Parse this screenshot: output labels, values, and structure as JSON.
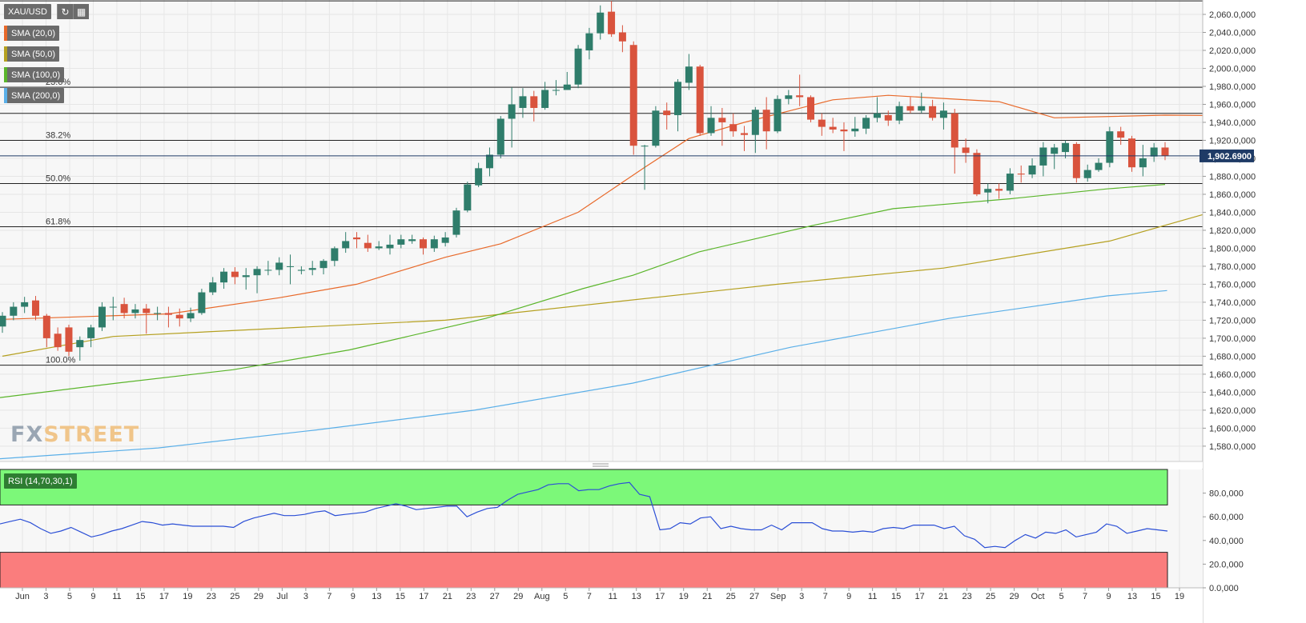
{
  "toolbar": {
    "symbol": "XAU/USD"
  },
  "legend": [
    {
      "label": "SMA (20,0)",
      "color": "#e8692a"
    },
    {
      "label": "SMA (50,0)",
      "color": "#b5a020"
    },
    {
      "label": "SMA (100,0)",
      "color": "#5ab52a"
    },
    {
      "label": "SMA (200,0)",
      "color": "#5aafe8"
    }
  ],
  "rsi_label": "RSI (14,70,30,1)",
  "watermark": {
    "fx": "FX",
    "street": "STREET"
  },
  "price_badge": "1,902.6900",
  "chart_data": [
    {
      "type": "candlestick",
      "title": "",
      "x_tick_labels": [
        "Jun",
        "3",
        "5",
        "9",
        "11",
        "15",
        "17",
        "19",
        "23",
        "25",
        "29",
        "Jul",
        "3",
        "7",
        "9",
        "13",
        "15",
        "17",
        "21",
        "23",
        "27",
        "29",
        "Aug",
        "5",
        "7",
        "11",
        "13",
        "17",
        "19",
        "21",
        "25",
        "27",
        "Sep",
        "3",
        "7",
        "9",
        "11",
        "15",
        "17",
        "21",
        "23",
        "25",
        "29",
        "Oct",
        "5",
        "7",
        "9",
        "13",
        "15",
        "19"
      ],
      "y_range": [
        1563,
        2076
      ],
      "y_ticks": [
        1580,
        1600,
        1620,
        1640,
        1660,
        1680,
        1700,
        1720,
        1740,
        1760,
        1780,
        1800,
        1820,
        1840,
        1860,
        1880,
        1900,
        1920,
        1940,
        1960,
        1980,
        2000,
        2020,
        2040,
        2060
      ],
      "last_price": 1902.69,
      "fibonacci": [
        {
          "label": "",
          "value": 2075
        },
        {
          "label": "23.6%",
          "value": 1979
        },
        {
          "label": "",
          "value": 1950
        },
        {
          "label": "38.2%",
          "value": 1920
        },
        {
          "label": "50.0%",
          "value": 1872
        },
        {
          "label": "61.8%",
          "value": 1824
        },
        {
          "label": "100.0%",
          "value": 1670
        }
      ],
      "candles": [
        [
          1713,
          1725,
          1706,
          1729
        ],
        [
          1725,
          1735,
          1720,
          1740
        ],
        [
          1735,
          1740,
          1728,
          1746
        ],
        [
          1742,
          1725,
          1720,
          1747
        ],
        [
          1725,
          1700,
          1690,
          1727
        ],
        [
          1705,
          1690,
          1686,
          1712
        ],
        [
          1712,
          1685,
          1680,
          1715
        ],
        [
          1690,
          1698,
          1675,
          1702
        ],
        [
          1700,
          1712,
          1690,
          1715
        ],
        [
          1712,
          1735,
          1708,
          1740
        ],
        [
          1735,
          1735,
          1720,
          1746
        ],
        [
          1738,
          1728,
          1722,
          1745
        ],
        [
          1728,
          1732,
          1722,
          1738
        ],
        [
          1733,
          1728,
          1705,
          1738
        ],
        [
          1728,
          1728,
          1720,
          1735
        ],
        [
          1728,
          1726,
          1712,
          1735
        ],
        [
          1726,
          1722,
          1713,
          1733
        ],
        [
          1722,
          1728,
          1718,
          1734
        ],
        [
          1728,
          1751,
          1726,
          1755
        ],
        [
          1751,
          1762,
          1748,
          1768
        ],
        [
          1762,
          1774,
          1755,
          1778
        ],
        [
          1774,
          1768,
          1760,
          1779
        ],
        [
          1768,
          1770,
          1754,
          1778
        ],
        [
          1770,
          1777,
          1750,
          1780
        ],
        [
          1776,
          1776,
          1770,
          1786
        ],
        [
          1776,
          1784,
          1770,
          1790
        ],
        [
          1780,
          1780,
          1760,
          1793
        ],
        [
          1775,
          1776,
          1771,
          1780
        ],
        [
          1776,
          1778,
          1770,
          1786
        ],
        [
          1778,
          1786,
          1771,
          1788
        ],
        [
          1786,
          1800,
          1780,
          1802
        ],
        [
          1800,
          1808,
          1795,
          1818
        ],
        [
          1812,
          1810,
          1800,
          1818
        ],
        [
          1806,
          1800,
          1796,
          1815
        ],
        [
          1800,
          1802,
          1798,
          1808
        ],
        [
          1800,
          1804,
          1793,
          1815
        ],
        [
          1804,
          1810,
          1800,
          1815
        ],
        [
          1808,
          1810,
          1805,
          1815
        ],
        [
          1810,
          1800,
          1793,
          1812
        ],
        [
          1800,
          1810,
          1796,
          1814
        ],
        [
          1806,
          1812,
          1802,
          1818
        ],
        [
          1815,
          1842,
          1812,
          1845
        ],
        [
          1842,
          1871,
          1840,
          1874
        ],
        [
          1870,
          1889,
          1868,
          1895
        ],
        [
          1889,
          1904,
          1880,
          1912
        ],
        [
          1904,
          1944,
          1900,
          1947
        ],
        [
          1944,
          1960,
          1912,
          1979
        ],
        [
          1956,
          1969,
          1945,
          1978
        ],
        [
          1969,
          1956,
          1941,
          1975
        ],
        [
          1956,
          1976,
          1954,
          1985
        ],
        [
          1976,
          1976,
          1970,
          1987
        ],
        [
          1976,
          1982,
          1976,
          1996
        ],
        [
          1982,
          2022,
          1978,
          2026
        ],
        [
          2020,
          2039,
          2010,
          2045
        ],
        [
          2039,
          2062,
          2032,
          2070
        ],
        [
          2063,
          2038,
          2035,
          2075
        ],
        [
          2040,
          2030,
          2018,
          2048
        ],
        [
          2026,
          1914,
          1904,
          2030
        ],
        [
          1914,
          1914,
          1865,
          1915
        ],
        [
          1914,
          1953,
          1912,
          1958
        ],
        [
          1953,
          1948,
          1932,
          1962
        ],
        [
          1948,
          1985,
          1930,
          1988
        ],
        [
          1984,
          2002,
          1976,
          2016
        ],
        [
          2002,
          1928,
          1925,
          2004
        ],
        [
          1928,
          1945,
          1925,
          1958
        ],
        [
          1945,
          1940,
          1914,
          1956
        ],
        [
          1938,
          1930,
          1924,
          1950
        ],
        [
          1928,
          1926,
          1908,
          1936
        ],
        [
          1926,
          1954,
          1906,
          1957
        ],
        [
          1954,
          1930,
          1910,
          1968
        ],
        [
          1930,
          1966,
          1928,
          1970
        ],
        [
          1966,
          1970,
          1960,
          1976
        ],
        [
          1970,
          1968,
          1958,
          1993
        ],
        [
          1968,
          1943,
          1940,
          1970
        ],
        [
          1943,
          1935,
          1925,
          1950
        ],
        [
          1935,
          1932,
          1928,
          1945
        ],
        [
          1932,
          1930,
          1908,
          1940
        ],
        [
          1930,
          1933,
          1924,
          1946
        ],
        [
          1933,
          1945,
          1927,
          1948
        ],
        [
          1945,
          1950,
          1940,
          1968
        ],
        [
          1948,
          1942,
          1936,
          1953
        ],
        [
          1942,
          1958,
          1938,
          1963
        ],
        [
          1958,
          1953,
          1950,
          1968
        ],
        [
          1953,
          1958,
          1950,
          1973
        ],
        [
          1958,
          1945,
          1942,
          1965
        ],
        [
          1945,
          1953,
          1932,
          1962
        ],
        [
          1950,
          1912,
          1883,
          1955
        ],
        [
          1912,
          1906,
          1895,
          1922
        ],
        [
          1906,
          1860,
          1858,
          1910
        ],
        [
          1862,
          1866,
          1850,
          1872
        ],
        [
          1866,
          1864,
          1855,
          1872
        ],
        [
          1864,
          1883,
          1860,
          1889
        ],
        [
          1883,
          1882,
          1873,
          1892
        ],
        [
          1882,
          1892,
          1878,
          1900
        ],
        [
          1892,
          1912,
          1880,
          1918
        ],
        [
          1905,
          1912,
          1888,
          1916
        ],
        [
          1907,
          1917,
          1900,
          1920
        ],
        [
          1916,
          1878,
          1873,
          1918
        ],
        [
          1878,
          1887,
          1874,
          1893
        ],
        [
          1887,
          1895,
          1885,
          1900
        ],
        [
          1895,
          1930,
          1890,
          1935
        ],
        [
          1930,
          1923,
          1915,
          1935
        ],
        [
          1922,
          1890,
          1885,
          1925
        ],
        [
          1890,
          1900,
          1880,
          1915
        ],
        [
          1902,
          1912,
          1896,
          1917
        ],
        [
          1912,
          1903,
          1898,
          1918
        ]
      ],
      "series": [
        {
          "name": "SMA (20,0)",
          "values": [
            [
              0,
              1721
            ],
            [
              15,
              1727
            ],
            [
              25,
              1745
            ],
            [
              32,
              1760
            ],
            [
              40,
              1790
            ],
            [
              45,
              1805
            ],
            [
              52,
              1840
            ],
            [
              58,
              1890
            ],
            [
              62,
              1922
            ],
            [
              67,
              1940
            ],
            [
              75,
              1965
            ],
            [
              80,
              1970
            ],
            [
              90,
              1963
            ],
            [
              95,
              1945
            ],
            [
              105,
              1948
            ],
            [
              115,
              1947
            ],
            [
              125,
              1935
            ],
            [
              130,
              1914
            ],
            [
              136,
              1903
            ],
            [
              144,
              1905
            ],
            [
              150,
              1902
            ],
            [
              160,
              1907
            ],
            [
              162,
              1895
            ]
          ]
        },
        {
          "name": "SMA (50,0)",
          "values": [
            [
              0,
              1680
            ],
            [
              10,
              1702
            ],
            [
              20,
              1708
            ],
            [
              40,
              1720
            ],
            [
              55,
              1740
            ],
            [
              70,
              1760
            ],
            [
              85,
              1778
            ],
            [
              100,
              1808
            ],
            [
              108,
              1836
            ],
            [
              115,
              1860
            ],
            [
              122,
              1881
            ],
            [
              130,
              1898
            ],
            [
              145,
              1923
            ],
            [
              155,
              1937
            ],
            [
              165,
              1944
            ],
            [
              175,
              1945
            ],
            [
              185,
              1942
            ],
            [
              191,
              1938
            ],
            [
              199,
              1927
            ]
          ]
        },
        {
          "name": "SMA (100,0)",
          "values": [
            [
              0,
              1634
            ],
            [
              30,
              1650
            ],
            [
              60,
              1665
            ],
            [
              90,
              1687
            ],
            [
              115,
              1712
            ],
            [
              125,
              1722
            ],
            [
              150,
              1755
            ],
            [
              163,
              1770
            ],
            [
              180,
              1796
            ],
            [
              210,
              1826
            ],
            [
              230,
              1844
            ],
            [
              260,
              1855
            ],
            [
              285,
              1866
            ],
            [
              300,
              1871
            ]
          ]
        },
        {
          "name": "SMA (200,0)",
          "values": [
            [
              0,
              1566
            ],
            [
              50,
              1578
            ],
            [
              100,
              1598
            ],
            [
              150,
              1620
            ],
            [
              200,
              1650
            ],
            [
              250,
              1690
            ],
            [
              300,
              1722
            ],
            [
              350,
              1747
            ],
            [
              369,
              1753
            ]
          ]
        }
      ]
    },
    {
      "type": "line",
      "title": "",
      "series": [
        {
          "name": "RSI (14,70,30,1)",
          "values": [
            54,
            56,
            58,
            55,
            50,
            46,
            48,
            51,
            47,
            43,
            45,
            48,
            50,
            53,
            56,
            55,
            53,
            54,
            53,
            52,
            52,
            52,
            52,
            51,
            56,
            59,
            61,
            63,
            61,
            61,
            62,
            64,
            65,
            61,
            62,
            63,
            64,
            67,
            69,
            71,
            69,
            66,
            67,
            68,
            69,
            69,
            60,
            64,
            67,
            68,
            74,
            79,
            81,
            83,
            87,
            88,
            88,
            82,
            83,
            83,
            86,
            88,
            89,
            79,
            77,
            49,
            50,
            55,
            54,
            59,
            60,
            50,
            52,
            50,
            49,
            49,
            53,
            49,
            55,
            55,
            55,
            50,
            48,
            48,
            47,
            48,
            47,
            50,
            51,
            50,
            53,
            53,
            53,
            50,
            52,
            44,
            41,
            34,
            35,
            34,
            40,
            45,
            42,
            47,
            46,
            49,
            43,
            45,
            47,
            54,
            52,
            46,
            48,
            50,
            49,
            48
          ]
        }
      ],
      "y_range": [
        0,
        100
      ],
      "y_ticks": [
        0,
        20,
        40,
        60,
        80
      ],
      "overbought": 70,
      "oversold": 30
    }
  ]
}
